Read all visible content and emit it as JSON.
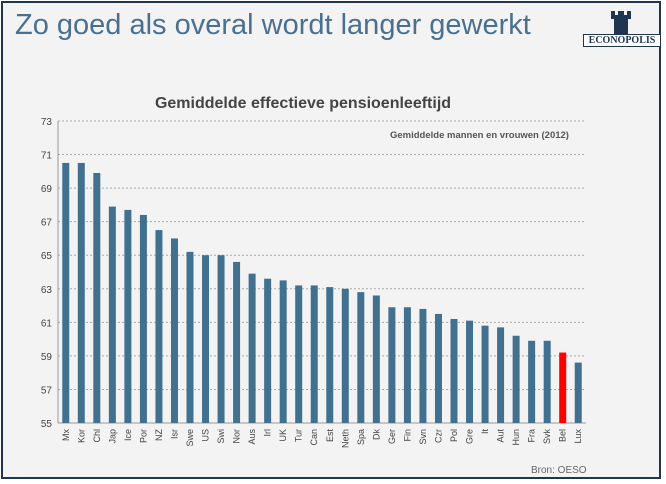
{
  "slide": {
    "title": "Zo goed als overal wordt langer gewerkt",
    "logo_text": "ECONOPOLIS",
    "source": "Bron: OESO"
  },
  "chart_data": {
    "type": "bar",
    "title": "Gemiddelde effectieve pensioenleeftijd",
    "subtitle": "Gemiddelde mannen en vrouwen (2012)",
    "categories": [
      "Mx",
      "Kor",
      "Chl",
      "Jap",
      "Ice",
      "Por",
      "NZ",
      "Isr",
      "Swe",
      "US",
      "Swi",
      "Nor",
      "Aus",
      "Irl",
      "UK",
      "Tur",
      "Can",
      "Est",
      "Neth",
      "Spa",
      "Dk",
      "Ger",
      "Fin",
      "Svn",
      "Czr",
      "Pol",
      "Gre",
      "It",
      "Aut",
      "Hun",
      "Fra",
      "Svk",
      "Bel",
      "Lux"
    ],
    "values": [
      70.5,
      70.5,
      69.9,
      67.9,
      67.7,
      67.4,
      66.5,
      66.0,
      65.2,
      65.0,
      65.0,
      64.6,
      63.9,
      63.6,
      63.5,
      63.2,
      63.2,
      63.1,
      63.0,
      62.8,
      62.6,
      61.9,
      61.9,
      61.8,
      61.5,
      61.2,
      61.1,
      60.8,
      60.7,
      60.2,
      59.9,
      59.9,
      59.2,
      58.6
    ],
    "ylim": [
      55,
      73
    ],
    "yticks": [
      55,
      57,
      59,
      61,
      63,
      65,
      67,
      69,
      71,
      73
    ],
    "grid": true,
    "colors": {
      "default": "#42708f",
      "highlight": "#ff0000"
    },
    "highlight_category": "Bel"
  }
}
